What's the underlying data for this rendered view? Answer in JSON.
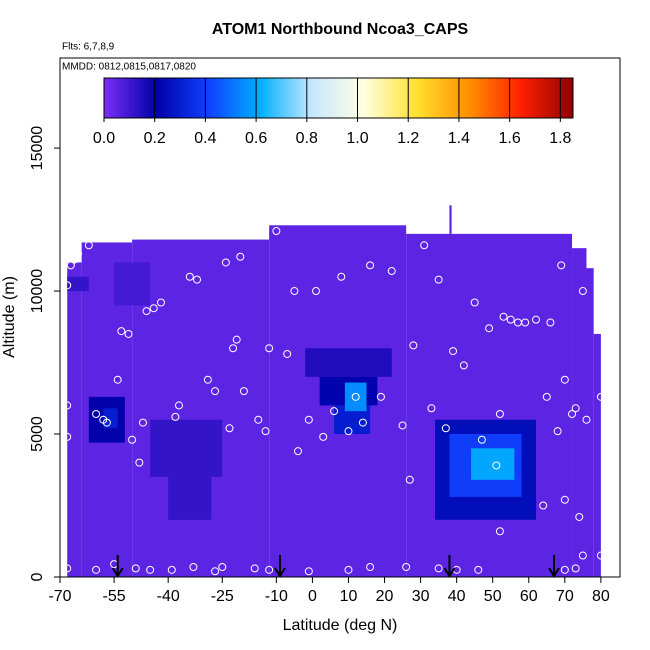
{
  "chart_data": {
    "type": "heatmap",
    "title": "ATOM1 Northbound Ncoa3_CAPS",
    "subtitle": "Flts: 6,7,8,9",
    "annotation": "MMDD: 0812,0815,0817,0820",
    "x_label": "Latitude (deg N)",
    "y_label": "Altitude (m)",
    "xlim": [
      -70,
      85.3
    ],
    "xticks": [
      -70,
      -55,
      -40,
      -25,
      -10,
      0,
      10,
      20,
      30,
      40,
      50,
      60,
      70,
      80
    ],
    "ylim": [
      0,
      18150
    ],
    "yticks": [
      0,
      5000,
      10000,
      15000
    ],
    "clim": [
      0,
      1.85
    ],
    "cticks": [
      {
        "value": 0,
        "label": "0.0"
      },
      0.2,
      0.4,
      0.6,
      0.8,
      {
        "value": 1,
        "label": "1.0"
      },
      1.2,
      1.4,
      1.6,
      1.8
    ],
    "colors": [
      "#7b2ff7",
      "#0000a8",
      "#1040ff",
      "#00b0ff",
      "#c8e8ff",
      "#ffffe0",
      "#ffe030",
      "#ff9000",
      "#ff2000",
      "#900000"
    ],
    "cells": [
      {
        "lat": [
          -68,
          -64
        ],
        "alt": [
          0,
          11000
        ],
        "value": 0.05
      },
      {
        "lat": [
          -64,
          -50
        ],
        "alt": [
          0,
          11700
        ],
        "value": 0.05
      },
      {
        "lat": [
          -50,
          -12
        ],
        "alt": [
          0,
          11800
        ],
        "value": 0.05
      },
      {
        "lat": [
          -12,
          26
        ],
        "alt": [
          0,
          12300
        ],
        "value": 0.05
      },
      {
        "lat": [
          26,
          72
        ],
        "alt": [
          0,
          12000
        ],
        "value": 0.05
      },
      {
        "lat": [
          72,
          76
        ],
        "alt": [
          0,
          11500
        ],
        "value": 0.05
      },
      {
        "lat": [
          76,
          78
        ],
        "alt": [
          0,
          10800
        ],
        "value": 0.05
      },
      {
        "lat": [
          78,
          80
        ],
        "alt": [
          0,
          8500
        ],
        "value": 0.05
      },
      {
        "lat": [
          38,
          38.6
        ],
        "alt": [
          12000,
          13000
        ],
        "value": 0.05
      },
      {
        "lat": [
          -68,
          -62
        ],
        "alt": [
          10000,
          10500
        ],
        "value": 0.12
      },
      {
        "lat": [
          -55,
          -45
        ],
        "alt": [
          9500,
          11000
        ],
        "value": 0.09
      },
      {
        "lat": [
          -62,
          -52
        ],
        "alt": [
          4700,
          6300
        ],
        "value": 0.2
      },
      {
        "lat": [
          -58,
          -54
        ],
        "alt": [
          5200,
          5900
        ],
        "value": 0.3
      },
      {
        "lat": [
          -45,
          -25
        ],
        "alt": [
          3500,
          5500
        ],
        "value": 0.12
      },
      {
        "lat": [
          -40,
          -28
        ],
        "alt": [
          2000,
          3500
        ],
        "value": 0.12
      },
      {
        "lat": [
          -2,
          22
        ],
        "alt": [
          7000,
          8000
        ],
        "value": 0.15
      },
      {
        "lat": [
          2,
          18
        ],
        "alt": [
          6000,
          7000
        ],
        "value": 0.22
      },
      {
        "lat": [
          6,
          16
        ],
        "alt": [
          5000,
          6000
        ],
        "value": 0.3
      },
      {
        "lat": [
          9,
          15
        ],
        "alt": [
          5800,
          6800
        ],
        "value": 0.55
      },
      {
        "lat": [
          34,
          62
        ],
        "alt": [
          2000,
          5500
        ],
        "value": 0.25
      },
      {
        "lat": [
          38,
          58
        ],
        "alt": [
          2800,
          5000
        ],
        "value": 0.4
      },
      {
        "lat": [
          44,
          56
        ],
        "alt": [
          3400,
          4500
        ],
        "value": 0.6
      }
    ],
    "points": {
      "lat": [
        -68,
        -68,
        -68,
        -67,
        -66,
        -65,
        -62,
        -60,
        -58,
        -57,
        -54,
        -53,
        -51,
        -50,
        -48,
        -47,
        -46,
        -44,
        -42,
        -38,
        -37,
        -34,
        -32,
        -29,
        -27,
        -24,
        -23,
        -22,
        -21,
        -20,
        -19,
        -15,
        -13,
        -12,
        -10,
        -7,
        -5,
        -4,
        -1,
        1,
        3,
        6,
        8,
        10,
        12,
        14,
        16,
        19,
        22,
        25,
        27,
        28,
        31,
        33,
        35,
        37,
        39,
        42,
        45,
        47,
        49,
        51,
        52,
        52,
        53,
        55,
        57,
        59,
        62,
        64,
        65,
        66,
        68,
        69,
        70,
        70,
        72,
        73,
        74,
        75,
        76,
        77,
        80,
        -68,
        -60,
        -55,
        -49,
        -45,
        -39,
        -33,
        -27,
        -25,
        -16,
        -12,
        -1,
        10,
        16,
        26,
        35,
        40,
        46,
        70,
        73,
        75,
        80
      ],
      "alt": [
        6000,
        4900,
        10200,
        10900,
        11100,
        11300,
        11600,
        5700,
        5500,
        5400,
        6900,
        8600,
        8500,
        4800,
        4000,
        5400,
        9300,
        9400,
        9600,
        5600,
        6000,
        10500,
        10400,
        6900,
        6500,
        11000,
        5200,
        8000,
        8300,
        11200,
        6500,
        5500,
        5100,
        8000,
        12100,
        7800,
        10000,
        4400,
        5500,
        10000,
        4900,
        5800,
        10500,
        5100,
        6300,
        5400,
        10900,
        6300,
        10700,
        5300,
        3400,
        8100,
        11600,
        5900,
        10400,
        5200,
        7900,
        7400,
        9600,
        4800,
        8700,
        3900,
        5700,
        1600,
        9100,
        9000,
        8900,
        8900,
        9000,
        2500,
        6300,
        8900,
        5100,
        10900,
        2700,
        6900,
        5700,
        5900,
        2100,
        10000,
        5500,
        11900,
        6300,
        300,
        250,
        450,
        300,
        250,
        250,
        350,
        200,
        350,
        300,
        250,
        200,
        250,
        350,
        350,
        300,
        250,
        250,
        250,
        300,
        750,
        750
      ]
    },
    "arrows_lat": [
      -54,
      -9,
      38,
      67
    ],
    "point_color": "#ffffff",
    "arrow_color": "#000000"
  }
}
